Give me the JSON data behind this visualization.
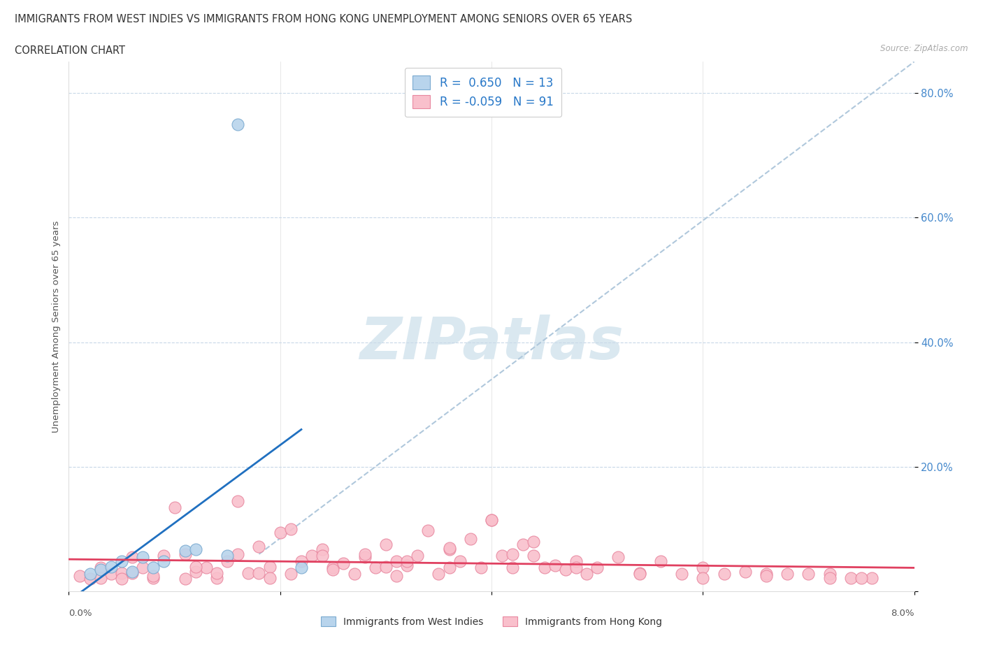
{
  "title_line1": "IMMIGRANTS FROM WEST INDIES VS IMMIGRANTS FROM HONG KONG UNEMPLOYMENT AMONG SENIORS OVER 65 YEARS",
  "title_line2": "CORRELATION CHART",
  "source_text": "Source: ZipAtlas.com",
  "ylabel": "Unemployment Among Seniors over 65 years",
  "xmin": 0.0,
  "xmax": 0.08,
  "ymin": 0.0,
  "ymax": 0.85,
  "ytick_vals": [
    0.0,
    0.2,
    0.4,
    0.6,
    0.8
  ],
  "ytick_labels": [
    "",
    "20.0%",
    "40.0%",
    "60.0%",
    "80.0%"
  ],
  "west_indies_R": 0.65,
  "west_indies_N": 13,
  "hong_kong_R": -0.059,
  "hong_kong_N": 91,
  "west_indies_fill_color": "#b8d4ec",
  "west_indies_edge_color": "#7aaad0",
  "hong_kong_fill_color": "#f9c0cc",
  "hong_kong_edge_color": "#e888a0",
  "west_indies_trend_color": "#2070c0",
  "hong_kong_trend_color": "#e04060",
  "dashed_line_color": "#b0c8dc",
  "grid_color": "#c8d8e8",
  "ytick_color": "#4488cc",
  "background_color": "#ffffff",
  "watermark_color": "#dae8f0",
  "west_indies_x": [
    0.002,
    0.003,
    0.004,
    0.005,
    0.006,
    0.007,
    0.008,
    0.009,
    0.011,
    0.012,
    0.015,
    0.016,
    0.022
  ],
  "west_indies_y": [
    0.028,
    0.035,
    0.04,
    0.048,
    0.032,
    0.055,
    0.038,
    0.048,
    0.065,
    0.068,
    0.058,
    0.75,
    0.038
  ],
  "hong_kong_x": [
    0.001,
    0.002,
    0.003,
    0.003,
    0.004,
    0.005,
    0.005,
    0.006,
    0.007,
    0.008,
    0.009,
    0.01,
    0.011,
    0.011,
    0.012,
    0.013,
    0.014,
    0.015,
    0.016,
    0.017,
    0.018,
    0.019,
    0.02,
    0.021,
    0.022,
    0.023,
    0.024,
    0.025,
    0.026,
    0.027,
    0.028,
    0.029,
    0.03,
    0.031,
    0.032,
    0.033,
    0.034,
    0.035,
    0.036,
    0.037,
    0.038,
    0.039,
    0.04,
    0.041,
    0.042,
    0.043,
    0.044,
    0.045,
    0.046,
    0.047,
    0.048,
    0.049,
    0.05,
    0.052,
    0.054,
    0.056,
    0.058,
    0.06,
    0.062,
    0.064,
    0.066,
    0.068,
    0.07,
    0.072,
    0.074,
    0.076,
    0.016,
    0.021,
    0.028,
    0.032,
    0.036,
    0.04,
    0.044,
    0.006,
    0.008,
    0.012,
    0.018,
    0.024,
    0.03,
    0.036,
    0.042,
    0.048,
    0.054,
    0.06,
    0.066,
    0.072,
    0.014,
    0.019,
    0.025,
    0.031,
    0.075
  ],
  "hong_kong_y": [
    0.025,
    0.02,
    0.038,
    0.022,
    0.028,
    0.03,
    0.02,
    0.055,
    0.038,
    0.022,
    0.058,
    0.135,
    0.06,
    0.02,
    0.032,
    0.038,
    0.022,
    0.048,
    0.06,
    0.03,
    0.072,
    0.04,
    0.095,
    0.028,
    0.048,
    0.058,
    0.068,
    0.038,
    0.045,
    0.028,
    0.055,
    0.038,
    0.075,
    0.048,
    0.042,
    0.058,
    0.098,
    0.028,
    0.068,
    0.048,
    0.085,
    0.038,
    0.115,
    0.058,
    0.038,
    0.075,
    0.058,
    0.038,
    0.042,
    0.035,
    0.048,
    0.028,
    0.038,
    0.055,
    0.03,
    0.048,
    0.028,
    0.038,
    0.028,
    0.032,
    0.028,
    0.028,
    0.028,
    0.028,
    0.022,
    0.022,
    0.145,
    0.1,
    0.06,
    0.048,
    0.038,
    0.115,
    0.08,
    0.03,
    0.025,
    0.04,
    0.03,
    0.058,
    0.04,
    0.07,
    0.06,
    0.038,
    0.028,
    0.022,
    0.025,
    0.022,
    0.03,
    0.022,
    0.035,
    0.025,
    0.022
  ]
}
